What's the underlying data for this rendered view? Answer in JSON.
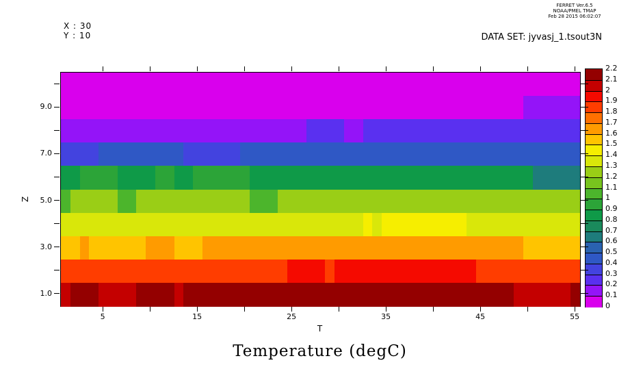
{
  "header": {
    "line1": "FERRET  Ver.6.5",
    "line2": "NOAA/PMEL TMAP",
    "line3": "Feb 28 2015 06:02:07"
  },
  "meta": {
    "x_info": "X : 30",
    "y_info": "Y : 10",
    "dataset_label": "DATA SET: jyvasj_1.tsout3N"
  },
  "chart_data": {
    "type": "heatmap",
    "title": "Temperature (degC)",
    "xlabel": "T",
    "ylabel": "Z",
    "x_range": [
      0.5,
      55.5
    ],
    "y_range": [
      0.5,
      10.5
    ],
    "x_ticks_labeled": [
      5,
      15,
      25,
      35,
      45,
      55
    ],
    "x_ticks_minor": [
      10,
      20,
      30,
      40,
      50
    ],
    "y_ticks_all": [
      1,
      2,
      3,
      4,
      5,
      6,
      7,
      8,
      9,
      10
    ],
    "y_ticks_labeled": [
      [
        1,
        "1.0"
      ],
      [
        3,
        "3.0"
      ],
      [
        5,
        "5.0"
      ],
      [
        7,
        "7.0"
      ],
      [
        9,
        "9.0"
      ]
    ],
    "value_range": [
      0,
      2.2
    ],
    "bin_size": 0.1,
    "grid": false,
    "legend_position": "right",
    "palette": {
      "0.0": "#D900ED",
      "0.1": "#9414F8",
      "0.2": "#5A30F0",
      "0.3": "#4343DF",
      "0.4": "#2F58C5",
      "0.5": "#2A62B0",
      "0.6": "#1E7C7C",
      "0.7": "#1A8A5C",
      "0.8": "#0F9A48",
      "0.9": "#2CA438",
      "1.0": "#4CB52C",
      "1.1": "#78C41E",
      "1.2": "#9ACE16",
      "1.3": "#D9E70A",
      "1.4": "#F6EE00",
      "1.5": "#FFC400",
      "1.6": "#FF9B00",
      "1.7": "#FF7000",
      "1.8": "#FF3D00",
      "1.9": "#F50A00",
      "2.0": "#C40000",
      "2.1": "#940000"
    },
    "colorbar_labels": [
      "2.2",
      "2.1",
      "2",
      "1.9",
      "1.8",
      "1.7",
      "1.6",
      "1.5",
      "1.4",
      "1.3",
      "1.2",
      "1.1",
      "1",
      "0.9",
      "0.8",
      "0.7",
      "0.6",
      "0.5",
      "0.4",
      "0.3",
      "0.2",
      "0.1",
      "0"
    ],
    "rows": [
      {
        "z": 10,
        "segments": [
          [
            0.5,
            55.5,
            0.0
          ]
        ]
      },
      {
        "z": 9,
        "segments": [
          [
            0.5,
            49.5,
            0.0
          ],
          [
            49.5,
            55.5,
            0.1
          ]
        ]
      },
      {
        "z": 8,
        "segments": [
          [
            0.5,
            26.5,
            0.1
          ],
          [
            26.5,
            30.5,
            0.2
          ],
          [
            30.5,
            32.5,
            0.1
          ],
          [
            32.5,
            55.5,
            0.2
          ]
        ]
      },
      {
        "z": 7,
        "segments": [
          [
            0.5,
            4.5,
            0.3
          ],
          [
            4.5,
            13.5,
            0.4
          ],
          [
            13.5,
            19.5,
            0.3
          ],
          [
            19.5,
            55.5,
            0.4
          ]
        ]
      },
      {
        "z": 6,
        "segments": [
          [
            0.5,
            2.5,
            0.8
          ],
          [
            2.5,
            6.5,
            0.9
          ],
          [
            6.5,
            10.5,
            0.8
          ],
          [
            10.5,
            12.5,
            0.9
          ],
          [
            12.5,
            14.5,
            0.8
          ],
          [
            14.5,
            20.5,
            0.9
          ],
          [
            20.5,
            50.5,
            0.8
          ],
          [
            50.5,
            55.5,
            0.6
          ]
        ]
      },
      {
        "z": 5,
        "segments": [
          [
            0.5,
            1.5,
            1.0
          ],
          [
            1.5,
            6.5,
            1.2
          ],
          [
            6.5,
            8.5,
            1.0
          ],
          [
            8.5,
            20.5,
            1.2
          ],
          [
            20.5,
            23.5,
            1.0
          ],
          [
            23.5,
            55.5,
            1.2
          ]
        ]
      },
      {
        "z": 4,
        "segments": [
          [
            0.5,
            32.5,
            1.3
          ],
          [
            32.5,
            33.5,
            1.4
          ],
          [
            33.5,
            34.5,
            1.3
          ],
          [
            34.5,
            43.5,
            1.4
          ],
          [
            43.5,
            55.5,
            1.3
          ]
        ]
      },
      {
        "z": 3,
        "segments": [
          [
            0.5,
            2.5,
            1.5
          ],
          [
            2.5,
            3.5,
            1.6
          ],
          [
            3.5,
            9.5,
            1.5
          ],
          [
            9.5,
            12.5,
            1.6
          ],
          [
            12.5,
            15.5,
            1.5
          ],
          [
            15.5,
            49.5,
            1.6
          ],
          [
            49.5,
            55.5,
            1.5
          ]
        ]
      },
      {
        "z": 2,
        "segments": [
          [
            0.5,
            24.5,
            1.8
          ],
          [
            24.5,
            28.5,
            1.9
          ],
          [
            28.5,
            29.5,
            1.8
          ],
          [
            29.5,
            44.5,
            1.9
          ],
          [
            44.5,
            55.5,
            1.8
          ]
        ]
      },
      {
        "z": 1,
        "segments": [
          [
            0.5,
            1.5,
            2.0
          ],
          [
            1.5,
            4.5,
            2.1
          ],
          [
            4.5,
            8.5,
            2.0
          ],
          [
            8.5,
            12.5,
            2.1
          ],
          [
            12.5,
            13.5,
            2.0
          ],
          [
            13.5,
            48.5,
            2.1
          ],
          [
            48.5,
            54.5,
            2.0
          ],
          [
            54.5,
            55.5,
            2.1
          ]
        ]
      }
    ]
  }
}
